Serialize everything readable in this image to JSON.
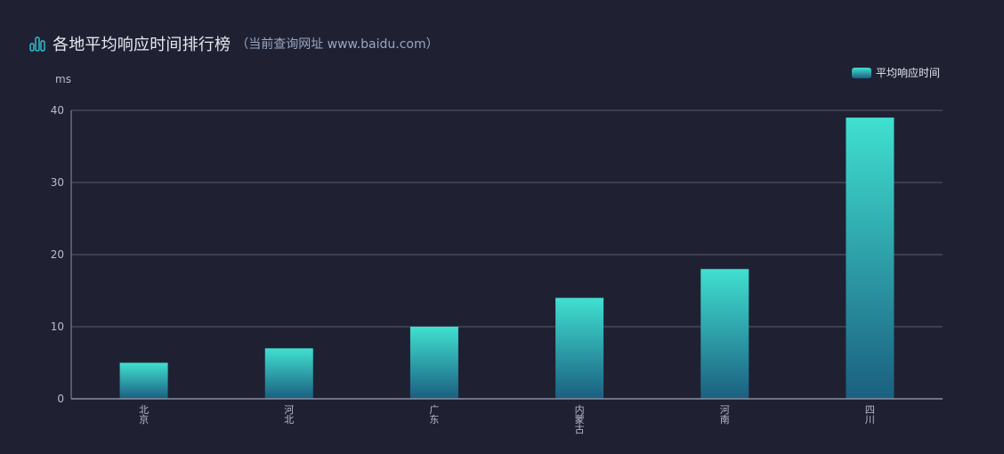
{
  "title": {
    "main": "各地平均响应时间排行榜",
    "sub": "（当前查询网址 www.baidu.com）",
    "icon": "bar-chart-icon"
  },
  "legend": {
    "label": "平均响应时间",
    "color_top": "#40e0d0",
    "color_bottom": "#1b5f80"
  },
  "unit_label": "ms",
  "colors": {
    "background": "#1f2133",
    "grid": "#565a6e",
    "axis": "#8a8ea0"
  },
  "chart_data": {
    "type": "bar",
    "title": "各地平均响应时间排行榜（当前查询网址 www.baidu.com）",
    "xlabel": "",
    "ylabel": "ms",
    "categories": [
      "北京",
      "河北",
      "广东",
      "内蒙古",
      "河南",
      "四川"
    ],
    "series": [
      {
        "name": "平均响应时间",
        "values": [
          5,
          7,
          10,
          14,
          18,
          39
        ]
      }
    ],
    "ylim": [
      0,
      40
    ],
    "yticks": [
      0,
      10,
      20,
      30,
      40
    ],
    "grid": true,
    "legend_position": "top-right"
  }
}
